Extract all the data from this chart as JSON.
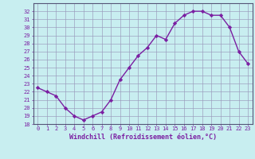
{
  "x": [
    0,
    1,
    2,
    3,
    4,
    5,
    6,
    7,
    8,
    9,
    10,
    11,
    12,
    13,
    14,
    15,
    16,
    17,
    18,
    19,
    20,
    21,
    22,
    23
  ],
  "y": [
    22.5,
    22.0,
    21.5,
    20.0,
    19.0,
    18.5,
    19.0,
    19.5,
    21.0,
    23.5,
    25.0,
    26.5,
    27.5,
    29.0,
    28.5,
    30.5,
    31.5,
    32.0,
    32.0,
    31.5,
    31.5,
    30.0,
    27.0,
    25.5
  ],
  "line_color": "#7b1fa2",
  "marker": "D",
  "marker_size": 2.2,
  "bg_color": "#c8eef0",
  "grid_color": "#9999bb",
  "xlabel": "Windchill (Refroidissement éolien,°C)",
  "ylim": [
    18,
    33
  ],
  "xlim": [
    -0.5,
    23.5
  ],
  "yticks": [
    18,
    19,
    20,
    21,
    22,
    23,
    24,
    25,
    26,
    27,
    28,
    29,
    30,
    31,
    32
  ],
  "xticks": [
    0,
    1,
    2,
    3,
    4,
    5,
    6,
    7,
    8,
    9,
    10,
    11,
    12,
    13,
    14,
    15,
    16,
    17,
    18,
    19,
    20,
    21,
    22,
    23
  ],
  "tick_fontsize": 5.0,
  "xlabel_fontsize": 6.0,
  "xlabel_fontweight": "bold",
  "line_width": 1.0,
  "spine_color": "#555577"
}
